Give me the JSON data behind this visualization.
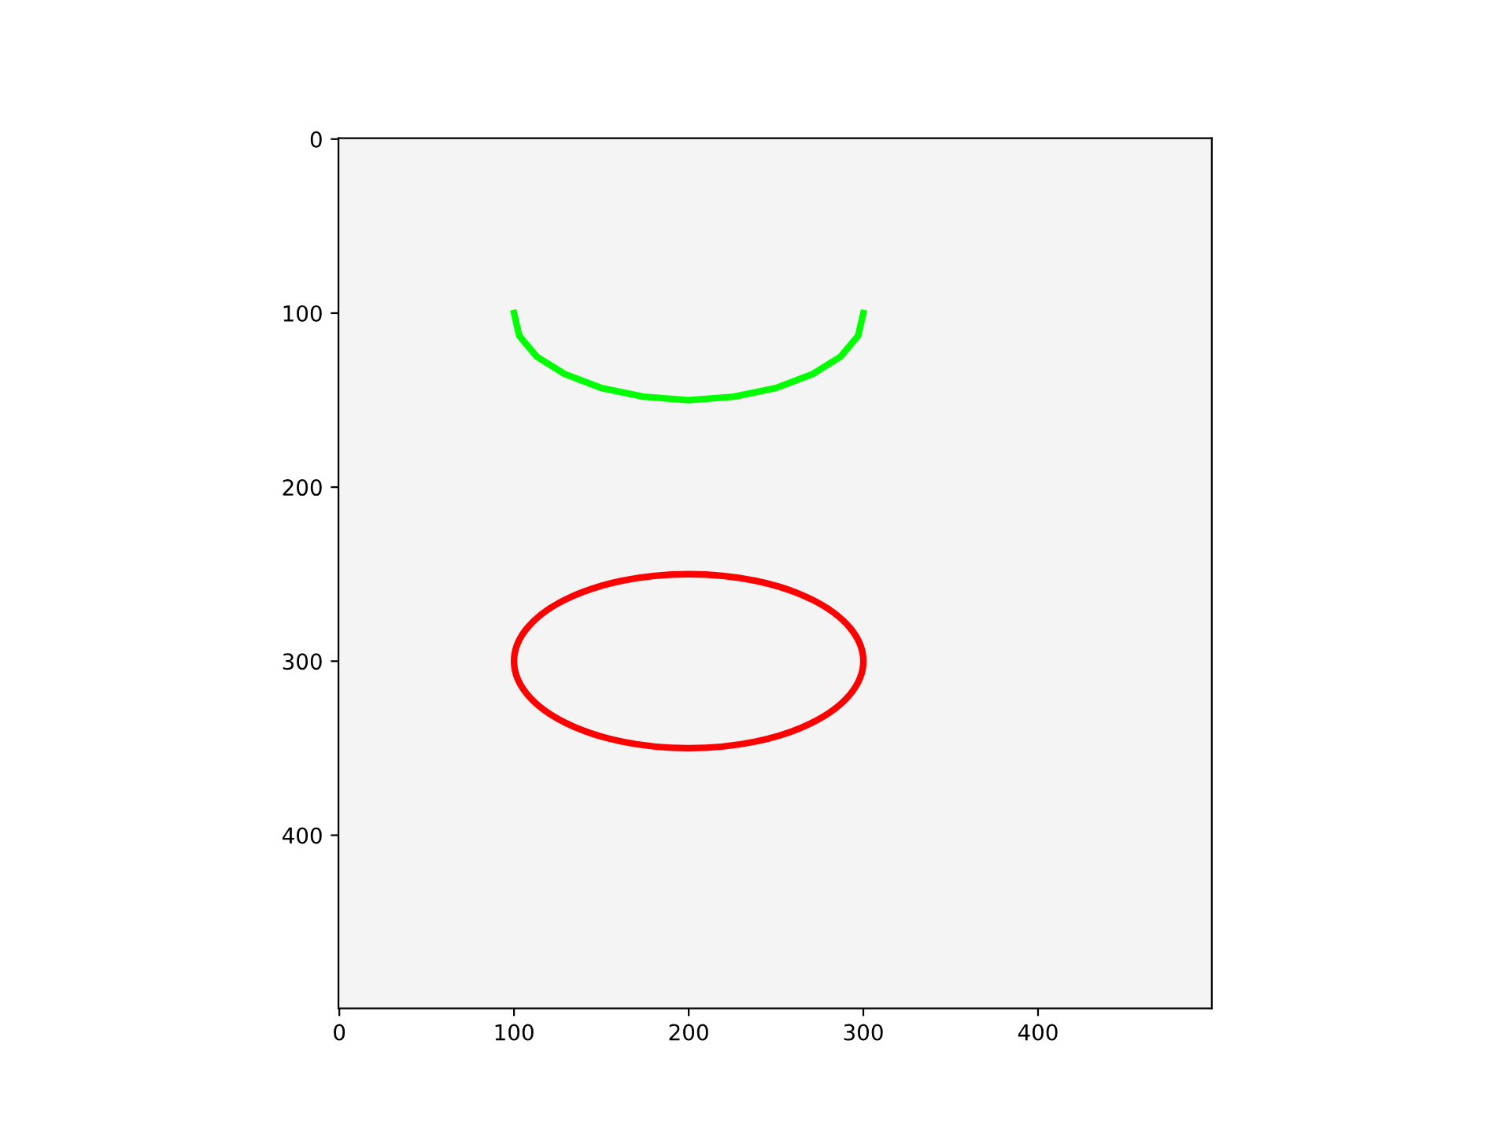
{
  "chart_data": {
    "type": "line",
    "xlim": [
      -0.5,
      499.5
    ],
    "ylim": [
      499.5,
      -0.5
    ],
    "xticks": [
      0,
      100,
      200,
      300,
      400
    ],
    "yticks": [
      0,
      100,
      200,
      300,
      400
    ],
    "grid": false,
    "legend": false,
    "marker": "none",
    "line_style": "solid",
    "series": [
      {
        "color": "#00ff00",
        "x": [
          100,
          103,
          113,
          129,
          150,
          174,
          200,
          226,
          250,
          271,
          287,
          297,
          300
        ],
        "values": [
          100,
          113,
          125,
          135,
          143,
          148,
          150,
          148,
          143,
          135,
          125,
          113,
          100
        ]
      }
    ]
  }
}
